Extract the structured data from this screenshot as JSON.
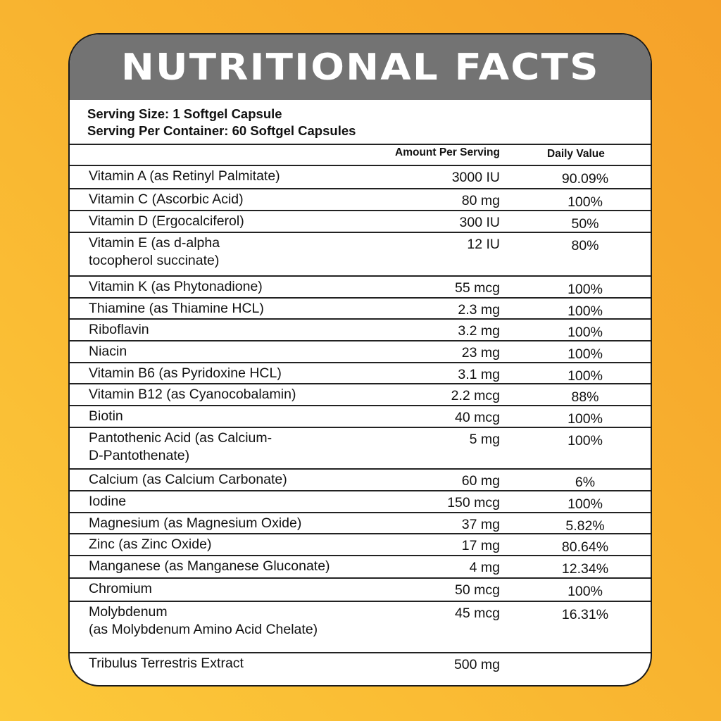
{
  "title": "NUTRITIONAL FACTS",
  "serving": {
    "size": "Serving Size: 1 Softgel Capsule",
    "per_container": "Serving Per Container: 60 Softgel Capsules"
  },
  "columns": {
    "amount": "Amount Per Serving",
    "daily_value": "Daily Value"
  },
  "colors": {
    "header_bg": "#737373",
    "bg_top": "#F5A12A",
    "bg_bottom": "#FCC93A"
  },
  "rows": [
    {
      "name": "Vitamin A (as Retinyl Palmitate)",
      "amount": "3000 IU",
      "dv": "90.09%",
      "h": 33
    },
    {
      "name": "Vitamin C (Ascorbic Acid)",
      "amount": "80 mg",
      "dv": "100%",
      "h": 31
    },
    {
      "name": "Vitamin D (Ergocalciferol)",
      "amount": "300 IU",
      "dv": "50%",
      "h": 31
    },
    {
      "name": "Vitamin E (as d-alpha\ntocopherol succinate)",
      "amount": "12 IU",
      "dv": "80%",
      "h": 62
    },
    {
      "name": "Vitamin K (as Phytonadione)",
      "amount": "55 mcg",
      "dv": "100%",
      "h": 31
    },
    {
      "name": "Thiamine (as Thiamine HCL)",
      "amount": "2.3 mg",
      "dv": "100%",
      "h": 30
    },
    {
      "name": "Riboflavin",
      "amount": "3.2 mg",
      "dv": "100%",
      "h": 31
    },
    {
      "name": "Niacin",
      "amount": "23 mg",
      "dv": "100%",
      "h": 31
    },
    {
      "name": "Vitamin B6 (as Pyridoxine HCL)",
      "amount": "3.1 mg",
      "dv": "100%",
      "h": 30
    },
    {
      "name": "Vitamin B12 (as Cyanocobalamin)",
      "amount": "2.2 mcg",
      "dv": "88%",
      "h": 31
    },
    {
      "name": "Biotin",
      "amount": "40 mcg",
      "dv": "100%",
      "h": 31
    },
    {
      "name": "Pantothenic Acid (as Calcium-\nD-Pantothenate)",
      "amount": "5 mg",
      "dv": "100%",
      "h": 59
    },
    {
      "name": "Calcium (as Calcium Carbonate)",
      "amount": "60 mg",
      "dv": "6%",
      "h": 31
    },
    {
      "name": "Iodine",
      "amount": "150 mcg",
      "dv": "100%",
      "h": 31
    },
    {
      "name": "Magnesium (as Magnesium Oxide)",
      "amount": "37 mg",
      "dv": "5.82%",
      "h": 30
    },
    {
      "name": "Zinc (as Zinc Oxide)",
      "amount": "17 mg",
      "dv": "80.64%",
      "h": 31
    },
    {
      "name": "Manganese (as Manganese Gluconate)",
      "amount": "4 mg",
      "dv": "12.34%",
      "h": 32
    },
    {
      "name": "Chromium",
      "amount": "50 mcg",
      "dv": "100%",
      "h": 33
    },
    {
      "name": "Molybdenum\n(as Molybdenum Amino Acid Chelate)",
      "amount": "45 mcg",
      "dv": "16.31%",
      "h": 73
    },
    {
      "name": "Tribulus Terrestris Extract",
      "amount": "500 mg",
      "dv": "",
      "h": 40
    }
  ]
}
